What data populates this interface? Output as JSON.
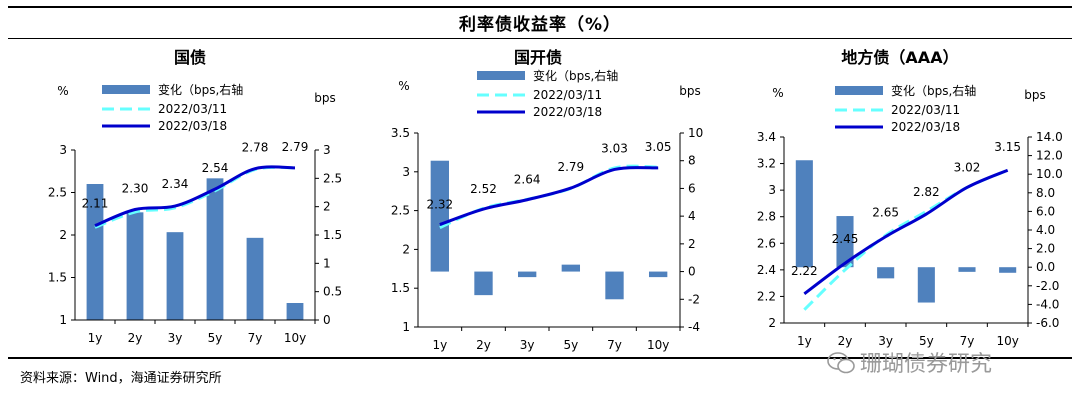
{
  "figure_title": "利率债收益率（%）",
  "source": "资料来源：Wind，海通证券研究所",
  "watermark": "珊瑚债券研究",
  "colors": {
    "bar": "#4F81BD",
    "line_prev": "#66FFFF",
    "line_curr": "#0000CC"
  },
  "legend": {
    "bar": "变化（bps,右轴",
    "prev": "2022/03/11",
    "curr": "2022/03/18"
  },
  "chart_data": [
    {
      "type": "bar+line",
      "title": "国债",
      "left_unit": "%",
      "right_unit": "bps",
      "categories": [
        "1y",
        "2y",
        "3y",
        "5y",
        "7y",
        "10y"
      ],
      "left_axis": {
        "min": 1,
        "max": 3,
        "ticks": [
          "1",
          "1.5",
          "2",
          "2.5",
          "3"
        ]
      },
      "right_axis": {
        "min": 0,
        "max": 3,
        "ticks": [
          "0",
          "0.5",
          "1",
          "1.5",
          "2",
          "2.5",
          "3"
        ]
      },
      "bars": [
        2.4,
        1.9,
        1.55,
        2.5,
        1.45,
        0.3
      ],
      "series": [
        {
          "name": "2022/03/11",
          "values": [
            2.09,
            2.27,
            2.32,
            2.52,
            2.77,
            2.79
          ]
        },
        {
          "name": "2022/03/18",
          "values": [
            2.11,
            2.3,
            2.34,
            2.54,
            2.78,
            2.79
          ]
        }
      ],
      "data_labels": [
        "2.11",
        "2.30",
        "2.34",
        "2.54",
        "2.78",
        "2.79"
      ],
      "legend_position": "top-center",
      "grid": false
    },
    {
      "type": "bar+line",
      "title": "国开债",
      "left_unit": "%",
      "right_unit": "bps",
      "categories": [
        "1y",
        "2y",
        "3y",
        "5y",
        "7y",
        "10y"
      ],
      "left_axis": {
        "min": 1,
        "max": 3.5,
        "ticks": [
          "1",
          "1.5",
          "2",
          "2.5",
          "3",
          "3.5"
        ]
      },
      "right_axis": {
        "min": -4,
        "max": 10,
        "ticks": [
          "-4",
          "-2",
          "0",
          "2",
          "4",
          "6",
          "8",
          "10"
        ]
      },
      "bars": [
        8,
        -1.7,
        -0.4,
        0.5,
        -2,
        -0.4
      ],
      "series": [
        {
          "name": "2022/03/11",
          "values": [
            2.28,
            2.53,
            2.645,
            2.785,
            3.05,
            3.06
          ]
        },
        {
          "name": "2022/03/18",
          "values": [
            2.32,
            2.52,
            2.64,
            2.79,
            3.03,
            3.05
          ]
        }
      ],
      "data_labels": [
        "2.32",
        "2.52",
        "2.64",
        "2.79",
        "3.03",
        "3.05"
      ],
      "legend_position": "top-center",
      "grid": false
    },
    {
      "type": "bar+line",
      "title": "地方债（AAA）",
      "left_unit": "%",
      "right_unit": "bps",
      "categories": [
        "1y",
        "2y",
        "3y",
        "5y",
        "7y",
        "10y"
      ],
      "left_axis": {
        "min": 2,
        "max": 3.4,
        "ticks": [
          "2",
          "2.2",
          "2.4",
          "2.6",
          "2.8",
          "3",
          "3.2",
          "3.4"
        ]
      },
      "right_axis": {
        "min": -6,
        "max": 14,
        "ticks": [
          "-6.0",
          "-4.0",
          "-2.0",
          "0.0",
          "2.0",
          "4.0",
          "6.0",
          "8.0",
          "10.0",
          "12.0",
          "14.0"
        ]
      },
      "bars": [
        11.5,
        5.5,
        -1.2,
        -3.8,
        -0.5,
        -0.6
      ],
      "series": [
        {
          "name": "2022/03/11",
          "values": [
            2.1,
            2.4,
            2.66,
            2.84,
            3.02,
            3.15
          ]
        },
        {
          "name": "2022/03/18",
          "values": [
            2.22,
            2.45,
            2.65,
            2.82,
            3.02,
            3.15
          ]
        }
      ],
      "data_labels": [
        "2.22",
        "2.45",
        "2.65",
        "2.82",
        "3.02",
        "3.15"
      ],
      "legend_position": "top-center",
      "grid": false
    }
  ]
}
